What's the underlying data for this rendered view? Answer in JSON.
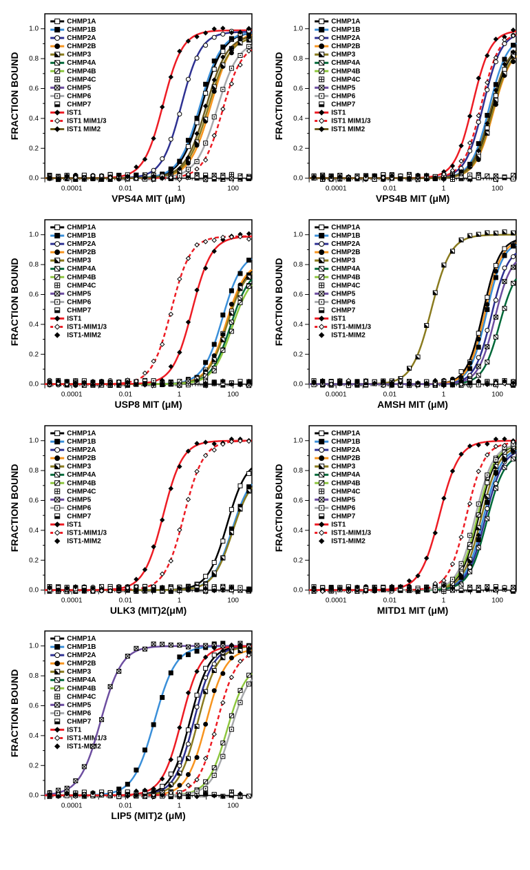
{
  "global": {
    "ylabel": "FRACTION BOUND",
    "ylim": [
      0,
      1.1
    ],
    "ytick_step": 0.2,
    "xmin": 1e-05,
    "xmax": 500,
    "xticks": [
      0.0001,
      0.01,
      1,
      100
    ],
    "xtick_labels": [
      "0.0001",
      "0.01",
      "1",
      "100"
    ],
    "background_color": "#ffffff",
    "axis_color": "#000000",
    "fontsize_axis_label": 14,
    "fontsize_tick": 10,
    "fontsize_legend": 10,
    "curve_linewidth": 2.5,
    "marker_size": 4
  },
  "series_defs": {
    "CHMP1A": {
      "label": "CHMP1A",
      "color": "#000000",
      "marker": "square-open",
      "dash": "solid"
    },
    "CHMP1B": {
      "label": "CHMP1B",
      "color": "#3a8fd9",
      "marker": "square-filled",
      "dash": "solid"
    },
    "CHMP2A": {
      "label": "CHMP2A",
      "color": "#2e3192",
      "marker": "circle-open",
      "dash": "solid"
    },
    "CHMP2B": {
      "label": "CHMP2B",
      "color": "#f7941e",
      "marker": "circle-filled",
      "dash": "solid"
    },
    "CHMP3": {
      "label": "CHMP3",
      "color": "#8a7b1f",
      "marker": "square-half-diag",
      "dash": "solid"
    },
    "CHMP4A": {
      "label": "CHMP4A",
      "color": "#006838",
      "marker": "square-backslash",
      "dash": "solid"
    },
    "CHMP4B": {
      "label": "CHMP4B",
      "color": "#8dc63f",
      "marker": "square-slash",
      "dash": "solid"
    },
    "CHMP4C": {
      "label": "CHMP4C",
      "color": "#000000",
      "marker": "square-cross",
      "dash": "none"
    },
    "CHMP5": {
      "label": "CHMP5",
      "color": "#6d4ea0",
      "marker": "square-x",
      "dash": "solid"
    },
    "CHMP6": {
      "label": "CHMP6",
      "color": "#a7a9ac",
      "marker": "square-dot",
      "dash": "solid"
    },
    "CHMP7": {
      "label": "CHMP7",
      "color": "#000000",
      "marker": "square-half-bottom",
      "dash": "none"
    },
    "IST1": {
      "label": "IST1",
      "color": "#ed1c24",
      "marker": "diamond-filled",
      "dash": "solid"
    },
    "IST1MIM13": {
      "label": "IST1 MIM1/3",
      "color": "#ed1c24",
      "marker": "diamond-open",
      "dash": "dash"
    },
    "IST1MIM13b": {
      "label": "IST1-MIM1/3",
      "color": "#ed1c24",
      "marker": "diamond-open",
      "dash": "dash"
    },
    "IST1MIM2": {
      "label": "IST1 MIM2",
      "color": "#6b5b1f",
      "marker": "diamond-filled",
      "dash": "solid"
    },
    "IST1MIM2b": {
      "label": "IST1-MIM2",
      "color": "#000000",
      "marker": "diamond-filled",
      "dash": "none"
    }
  },
  "panels": [
    {
      "id": "vps4a",
      "xlabel": "VPS4A MIT (μM)",
      "legend_keys": [
        "CHMP1A",
        "CHMP1B",
        "CHMP2A",
        "CHMP2B",
        "CHMP3",
        "CHMP4A",
        "CHMP4B",
        "CHMP4C",
        "CHMP5",
        "CHMP6",
        "CHMP7",
        "IST1",
        "IST1MIM13",
        "IST1MIM2"
      ],
      "curves": {
        "CHMP1A": {
          "ec50": 7,
          "hill": 1.1,
          "top": 0.98
        },
        "CHMP1B": {
          "ec50": 6,
          "hill": 1.1,
          "top": 0.98
        },
        "CHMP2A": {
          "ec50": 1.2,
          "hill": 1.2,
          "top": 0.98
        },
        "CHMP2B": {
          "ec50": 15,
          "hill": 1.1,
          "top": 0.98
        },
        "CHMP3": {
          "ec50": 12,
          "hill": 1.1,
          "top": 0.95
        },
        "CHMP6": {
          "ec50": 25,
          "hill": 1.1,
          "top": 0.92
        },
        "IST1": {
          "ec50": 0.25,
          "hill": 1.2,
          "top": 0.99
        },
        "IST1MIM13": {
          "ec50": 40,
          "hill": 1.2,
          "top": 0.9
        },
        "IST1MIM2": {
          "ec50": 10,
          "hill": 1.1,
          "top": 0.96
        }
      }
    },
    {
      "id": "vps4b",
      "xlabel": "VPS4B MIT (μM)",
      "legend_keys": [
        "CHMP1A",
        "CHMP1B",
        "CHMP2A",
        "CHMP2B",
        "CHMP3",
        "CHMP4A",
        "CHMP4B",
        "CHMP4C",
        "CHMP5",
        "CHMP6",
        "CHMP7",
        "IST1",
        "IST1MIM13",
        "IST1MIM2"
      ],
      "curves": {
        "CHMP1A": {
          "ec50": 60,
          "hill": 1.3,
          "top": 0.9
        },
        "CHMP1B": {
          "ec50": 50,
          "hill": 1.3,
          "top": 0.95
        },
        "CHMP2A": {
          "ec50": 30,
          "hill": 1.3,
          "top": 0.98
        },
        "CHMP2B": {
          "ec50": 70,
          "hill": 1.3,
          "top": 0.88
        },
        "CHMP3": {
          "ec50": 65,
          "hill": 1.3,
          "top": 0.88
        },
        "IST1": {
          "ec50": 12,
          "hill": 1.3,
          "top": 0.99
        },
        "IST1MIM13": {
          "ec50": 25,
          "hill": 1.3,
          "top": 0.98
        },
        "IST1MIM2": {
          "ec50": 55,
          "hill": 1.3,
          "top": 0.9
        }
      }
    },
    {
      "id": "usp8",
      "xlabel": "USP8 MIT (μM)",
      "legend_keys": [
        "CHMP1A",
        "CHMP1B",
        "CHMP2A",
        "CHMP2B",
        "CHMP3",
        "CHMP4A",
        "CHMP4B",
        "CHMP4C",
        "CHMP5",
        "CHMP6",
        "CHMP7",
        "IST1",
        "IST1MIM13b",
        "IST1MIM2b"
      ],
      "curves": {
        "CHMP1A": {
          "ec50": 60,
          "hill": 1.2,
          "top": 0.82
        },
        "CHMP1B": {
          "ec50": 40,
          "hill": 1.2,
          "top": 0.88
        },
        "CHMP2B": {
          "ec50": 55,
          "hill": 1.2,
          "top": 0.82
        },
        "CHMP3": {
          "ec50": 60,
          "hill": 1.2,
          "top": 0.8
        },
        "CHMP4A": {
          "ec50": 80,
          "hill": 1.2,
          "top": 0.78
        },
        "CHMP4B": {
          "ec50": 90,
          "hill": 1.2,
          "top": 0.75
        },
        "IST1": {
          "ec50": 3,
          "hill": 1.2,
          "top": 0.99
        },
        "IST1MIM13b": {
          "ec50": 0.5,
          "hill": 1.2,
          "top": 0.99
        }
      }
    },
    {
      "id": "amsh",
      "xlabel": "AMSH MIT (μM)",
      "legend_keys": [
        "CHMP1A",
        "CHMP1B",
        "CHMP2A",
        "CHMP2B",
        "CHMP3",
        "CHMP4A",
        "CHMP4B",
        "CHMP4C",
        "CHMP5",
        "CHMP6",
        "CHMP7",
        "IST1",
        "IST1MIM13b",
        "IST1MIM2b"
      ],
      "curves": {
        "CHMP1A": {
          "ec50": 30,
          "hill": 1.4,
          "top": 0.98
        },
        "CHMP1B": {
          "ec50": 40,
          "hill": 1.4,
          "top": 0.96
        },
        "CHMP2A": {
          "ec50": 60,
          "hill": 1.4,
          "top": 0.92
        },
        "CHMP2B": {
          "ec50": 35,
          "hill": 1.4,
          "top": 0.97
        },
        "CHMP3": {
          "ec50": 0.35,
          "hill": 1.2,
          "top": 1.0
        },
        "CHMP4A": {
          "ec50": 120,
          "hill": 1.4,
          "top": 0.8
        },
        "CHMP5": {
          "ec50": 80,
          "hill": 1.4,
          "top": 0.88
        }
      }
    },
    {
      "id": "ulk3",
      "xlabel": "ULK3 (MIT)2(μM)",
      "legend_keys": [
        "CHMP1A",
        "CHMP1B",
        "CHMP2A",
        "CHMP2B",
        "CHMP3",
        "CHMP4A",
        "CHMP4B",
        "CHMP4C",
        "CHMP5",
        "CHMP6",
        "CHMP7",
        "IST1",
        "IST1MIM13b",
        "IST1MIM2b"
      ],
      "curves": {
        "CHMP1A": {
          "ec50": 60,
          "hill": 1.2,
          "top": 0.88
        },
        "CHMP1B": {
          "ec50": 90,
          "hill": 1.2,
          "top": 0.8
        },
        "CHMP3": {
          "ec50": 95,
          "hill": 1.2,
          "top": 0.78
        },
        "IST1": {
          "ec50": 0.25,
          "hill": 1.2,
          "top": 1.0
        },
        "IST1MIM13b": {
          "ec50": 1.5,
          "hill": 1.2,
          "top": 1.0
        }
      }
    },
    {
      "id": "mitd1",
      "xlabel": "MITD1 MIT (μM)",
      "legend_keys": [
        "CHMP1A",
        "CHMP1B",
        "CHMP2A",
        "CHMP2B",
        "CHMP3",
        "CHMP4A",
        "CHMP4B",
        "CHMP4C",
        "CHMP5",
        "CHMP6",
        "CHMP7",
        "IST1",
        "IST1MIM13b",
        "IST1MIM2b"
      ],
      "curves": {
        "CHMP1A": {
          "ec50": 20,
          "hill": 1.3,
          "top": 0.98
        },
        "CHMP1B": {
          "ec50": 30,
          "hill": 1.3,
          "top": 0.96
        },
        "CHMP2A": {
          "ec50": 35,
          "hill": 1.3,
          "top": 0.95
        },
        "CHMP3": {
          "ec50": 25,
          "hill": 1.3,
          "top": 0.97
        },
        "CHMP4A": {
          "ec50": 40,
          "hill": 1.3,
          "top": 0.92
        },
        "CHMP4B": {
          "ec50": 18,
          "hill": 1.3,
          "top": 0.98
        },
        "CHMP6": {
          "ec50": 15,
          "hill": 1.3,
          "top": 0.98
        },
        "IST1": {
          "ec50": 0.7,
          "hill": 1.2,
          "top": 1.0
        },
        "IST1MIM13b": {
          "ec50": 7,
          "hill": 1.3,
          "top": 0.99
        },
        "IST1MIM2b": {
          "ec50": 30,
          "hill": 1.3,
          "top": 0.96
        }
      }
    },
    {
      "id": "lip5",
      "xlabel": "LIP5 (MIT)2 (μM)",
      "legend_keys": [
        "CHMP1A",
        "CHMP1B",
        "CHMP2A",
        "CHMP2B",
        "CHMP3",
        "CHMP4A",
        "CHMP4B",
        "CHMP4C",
        "CHMP5",
        "CHMP6",
        "CHMP7",
        "IST1",
        "IST1MIM13b",
        "IST1MIM2b"
      ],
      "curves": {
        "CHMP1A": {
          "ec50": 2.5,
          "hill": 1.2,
          "top": 1.0
        },
        "CHMP1B": {
          "ec50": 0.12,
          "hill": 1.1,
          "top": 1.0
        },
        "CHMP2A": {
          "ec50": 3.5,
          "hill": 1.2,
          "top": 1.0
        },
        "CHMP2B": {
          "ec50": 10,
          "hill": 1.2,
          "top": 0.98
        },
        "CHMP3": {
          "ec50": 5,
          "hill": 1.2,
          "top": 1.0
        },
        "CHMP4B": {
          "ec50": 60,
          "hill": 1.2,
          "top": 0.88
        },
        "CHMP5": {
          "ec50": 0.0012,
          "hill": 1.1,
          "top": 1.0
        },
        "CHMP6": {
          "ec50": 80,
          "hill": 1.2,
          "top": 0.86
        },
        "IST1": {
          "ec50": 1.2,
          "hill": 1.2,
          "top": 1.0
        },
        "IST1MIM13b": {
          "ec50": 25,
          "hill": 1.2,
          "top": 0.97
        }
      }
    }
  ]
}
